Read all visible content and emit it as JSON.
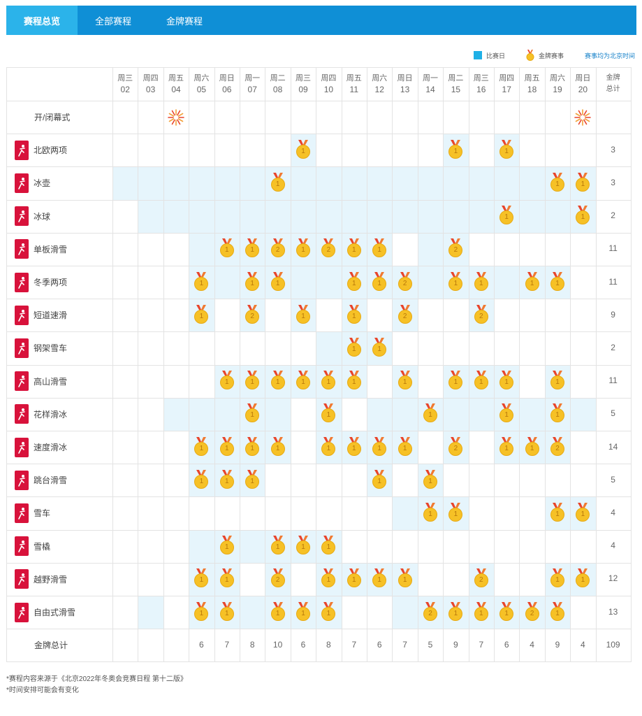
{
  "tabs": [
    {
      "label": "赛程总览",
      "active": true
    },
    {
      "label": "全部赛程",
      "active": false
    },
    {
      "label": "金牌赛程",
      "active": false
    }
  ],
  "legend": {
    "competition_day": "比赛日",
    "gold_event": "金牌赛事",
    "timezone_note": "赛事均为北京时间"
  },
  "header": {
    "days": [
      {
        "weekday": "周三",
        "date": "02"
      },
      {
        "weekday": "周四",
        "date": "03"
      },
      {
        "weekday": "周五",
        "date": "04"
      },
      {
        "weekday": "周六",
        "date": "05"
      },
      {
        "weekday": "周日",
        "date": "06"
      },
      {
        "weekday": "周一",
        "date": "07"
      },
      {
        "weekday": "周二",
        "date": "08"
      },
      {
        "weekday": "周三",
        "date": "09"
      },
      {
        "weekday": "周四",
        "date": "10"
      },
      {
        "weekday": "周五",
        "date": "11"
      },
      {
        "weekday": "周六",
        "date": "12"
      },
      {
        "weekday": "周日",
        "date": "13"
      },
      {
        "weekday": "周一",
        "date": "14"
      },
      {
        "weekday": "周二",
        "date": "15"
      },
      {
        "weekday": "周三",
        "date": "16"
      },
      {
        "weekday": "周四",
        "date": "17"
      },
      {
        "weekday": "周五",
        "date": "18"
      },
      {
        "weekday": "周六",
        "date": "19"
      },
      {
        "weekday": "周日",
        "date": "20"
      }
    ],
    "total_label_1": "金牌",
    "total_label_2": "总计"
  },
  "ceremony": {
    "label": "开/闭幕式",
    "days": [
      2,
      18
    ]
  },
  "sports": [
    {
      "name": "北欧两项",
      "icon": "nordic-combined-icon",
      "days": [
        7,
        13,
        15
      ],
      "medals": {
        "7": 1,
        "13": 1,
        "15": 1
      },
      "total": "3"
    },
    {
      "name": "冰壶",
      "icon": "curling-icon",
      "days": [
        0,
        1,
        2,
        3,
        4,
        5,
        6,
        7,
        8,
        9,
        10,
        11,
        12,
        13,
        14,
        15,
        16,
        17,
        18
      ],
      "medals": {
        "6": 1,
        "17": 1,
        "18": 1
      },
      "total": "3"
    },
    {
      "name": "冰球",
      "icon": "ice-hockey-icon",
      "days": [
        1,
        2,
        3,
        4,
        5,
        6,
        7,
        8,
        9,
        10,
        11,
        12,
        13,
        14,
        15,
        16,
        17,
        18
      ],
      "medals": {
        "15": 1,
        "18": 1
      },
      "total": "2"
    },
    {
      "name": "单板滑雪",
      "icon": "snowboard-icon",
      "days": [
        3,
        4,
        5,
        6,
        7,
        8,
        9,
        10,
        12,
        13
      ],
      "medals": {
        "4": 1,
        "5": 1,
        "6": 2,
        "7": 1,
        "8": 2,
        "9": 1,
        "10": 1,
        "13": 2
      },
      "total": "11"
    },
    {
      "name": "冬季两项",
      "icon": "biathlon-icon",
      "days": [
        3,
        4,
        5,
        6,
        7,
        8,
        9,
        10,
        11,
        12,
        13,
        14,
        15,
        16,
        17
      ],
      "medals": {
        "3": 1,
        "5": 1,
        "6": 1,
        "9": 1,
        "10": 1,
        "11": 2,
        "13": 1,
        "14": 1,
        "16": 1,
        "17": 1
      },
      "total": "11"
    },
    {
      "name": "短道速滑",
      "icon": "short-track-icon",
      "days": [
        3,
        5,
        7,
        9,
        11,
        14
      ],
      "medals": {
        "3": 1,
        "5": 2,
        "7": 1,
        "9": 1,
        "11": 2,
        "14": 2
      },
      "total": "9"
    },
    {
      "name": "钢架雪车",
      "icon": "skeleton-icon",
      "days": [
        8,
        9,
        10
      ],
      "medals": {
        "9": 1,
        "10": 1
      },
      "total": "2"
    },
    {
      "name": "高山滑雪",
      "icon": "alpine-skiing-icon",
      "days": [
        4,
        5,
        6,
        7,
        8,
        9,
        11,
        13,
        14,
        15,
        17
      ],
      "medals": {
        "4": 1,
        "5": 1,
        "6": 1,
        "7": 1,
        "8": 1,
        "9": 1,
        "11": 1,
        "13": 1,
        "14": 1,
        "15": 1,
        "17": 1
      },
      "total": "11"
    },
    {
      "name": "花样滑冰",
      "icon": "figure-skating-icon",
      "days": [
        2,
        3,
        4,
        5,
        6,
        8,
        10,
        11,
        12,
        13,
        14,
        15,
        16,
        17,
        18
      ],
      "medals": {
        "5": 1,
        "8": 1,
        "12": 1,
        "15": 1,
        "17": 1
      },
      "total": "5"
    },
    {
      "name": "速度滑冰",
      "icon": "speed-skating-icon",
      "days": [
        3,
        4,
        5,
        6,
        8,
        9,
        10,
        11,
        13,
        15,
        16,
        17
      ],
      "medals": {
        "3": 1,
        "4": 1,
        "5": 1,
        "6": 1,
        "8": 1,
        "9": 1,
        "10": 1,
        "11": 1,
        "13": 2,
        "15": 1,
        "16": 1,
        "17": 2
      },
      "total": "14"
    },
    {
      "name": "跳台滑雪",
      "icon": "ski-jumping-icon",
      "days": [
        3,
        4,
        5,
        10,
        12
      ],
      "medals": {
        "3": 1,
        "4": 1,
        "5": 1,
        "10": 1,
        "12": 1
      },
      "total": "5"
    },
    {
      "name": "雪车",
      "icon": "bobsleigh-icon",
      "days": [
        11,
        12,
        13,
        17,
        18
      ],
      "medals": {
        "12": 1,
        "13": 1,
        "17": 1,
        "18": 1
      },
      "total": "4"
    },
    {
      "name": "雪橇",
      "icon": "luge-icon",
      "days": [
        3,
        4,
        5,
        6,
        7,
        8
      ],
      "medals": {
        "4": 1,
        "6": 1,
        "7": 1,
        "8": 1
      },
      "total": "4"
    },
    {
      "name": "越野滑雪",
      "icon": "cross-country-icon",
      "days": [
        3,
        4,
        6,
        8,
        9,
        10,
        11,
        14,
        17,
        18
      ],
      "medals": {
        "3": 1,
        "4": 1,
        "6": 2,
        "8": 1,
        "9": 1,
        "10": 1,
        "11": 1,
        "14": 2,
        "17": 1,
        "18": 1
      },
      "total": "12"
    },
    {
      "name": "自由式滑雪",
      "icon": "freestyle-skiing-icon",
      "days": [
        1,
        3,
        4,
        5,
        6,
        7,
        8,
        11,
        12,
        13,
        14,
        15,
        16,
        17
      ],
      "medals": {
        "3": 1,
        "4": 1,
        "6": 1,
        "7": 1,
        "8": 1,
        "12": 2,
        "13": 1,
        "14": 1,
        "15": 1,
        "16": 2,
        "17": 1
      },
      "total": "13"
    }
  ],
  "totals_row": {
    "label": "金牌总计",
    "values": [
      "",
      "",
      "",
      "6",
      "7",
      "8",
      "10",
      "6",
      "8",
      "7",
      "6",
      "7",
      "5",
      "9",
      "7",
      "6",
      "4",
      "9",
      "4"
    ],
    "grand_total": "109"
  },
  "footnotes": [
    "*赛程内容来源于《北京2022年冬奥会竞赛日程 第十二版》",
    "*时间安排可能会有变化"
  ],
  "colors": {
    "tabbar": "#0f8fd6",
    "tab_active": "#2bb3ea",
    "competition_day_bg": "#e6f5fc",
    "legend_square": "#1fb0e6",
    "sport_icon_red": "#d8123b",
    "medal_gold": "#f6c126",
    "ribbon": "#e8452c"
  }
}
